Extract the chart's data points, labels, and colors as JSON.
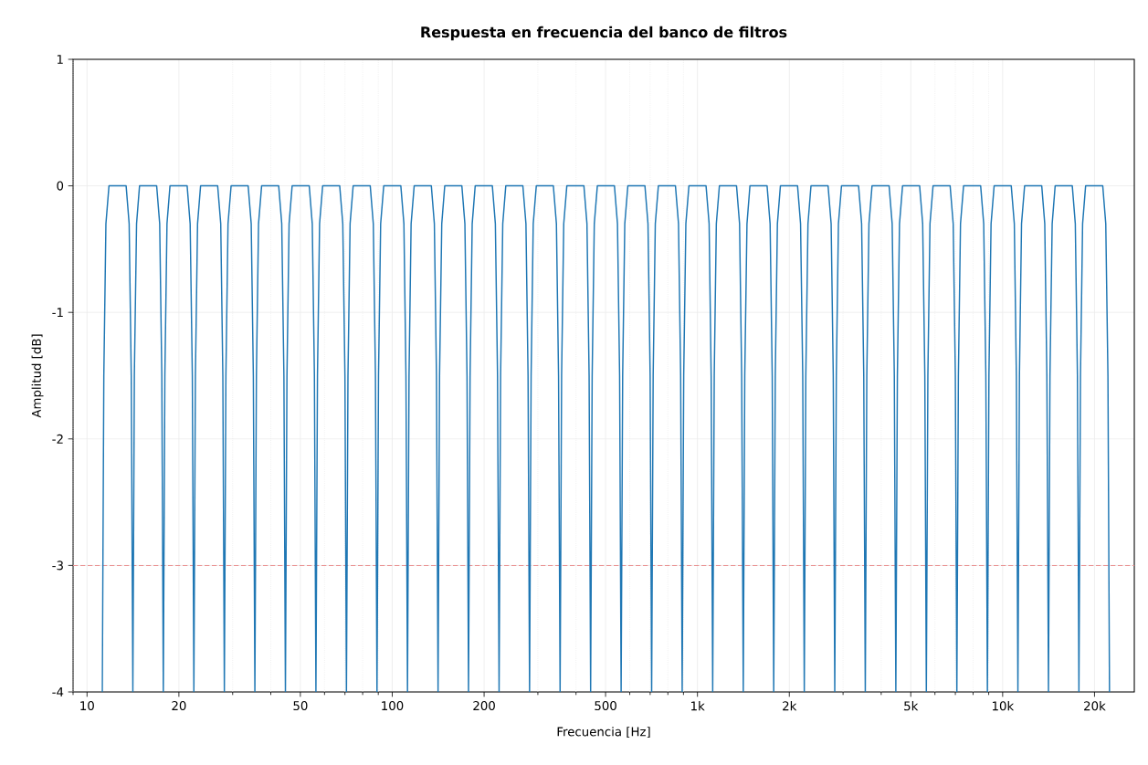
{
  "chart_data": {
    "type": "line",
    "title": "Respuesta en frecuencia del banco de filtros",
    "xlabel": "Frecuencia [Hz]",
    "ylabel": "Amplitud [dB]",
    "log": "x",
    "grid": true,
    "xlim": [
      9,
      27000
    ],
    "ylim": [
      -4,
      1
    ],
    "xticks": [
      {
        "value": 9,
        "label": null
      },
      10,
      20,
      {
        "value": 30,
        "label": null
      },
      {
        "value": 40,
        "label": null
      },
      50,
      {
        "value": 60,
        "label": null
      },
      {
        "value": 70,
        "label": null
      },
      {
        "value": 80,
        "label": null
      },
      {
        "value": 90,
        "label": null
      },
      100,
      200,
      {
        "value": 300,
        "label": null
      },
      {
        "value": 400,
        "label": null
      },
      500,
      {
        "value": 600,
        "label": null
      },
      {
        "value": 700,
        "label": null
      },
      {
        "value": 800,
        "label": null
      },
      {
        "value": 900,
        "label": null
      },
      {
        "value": 1000,
        "label": "1k"
      },
      {
        "value": 2000,
        "label": "2k"
      },
      {
        "value": 3000,
        "label": null
      },
      {
        "value": 4000,
        "label": null
      },
      {
        "value": 5000,
        "label": "5k"
      },
      {
        "value": 6000,
        "label": null
      },
      {
        "value": 7000,
        "label": null
      },
      {
        "value": 8000,
        "label": null
      },
      {
        "value": 9000,
        "label": null
      },
      {
        "value": 10000,
        "label": "10k"
      },
      {
        "value": 20000,
        "label": "20k"
      }
    ],
    "yticks": [
      -4,
      -3,
      -2,
      -1,
      0,
      1
    ],
    "ref_lines": [
      {
        "axis": "y",
        "value": -3,
        "color": "#ea9393",
        "line_style": "dashed"
      }
    ],
    "series": [
      {
        "color": "#1f77b4",
        "line_style": "solid",
        "x": [
          11.22,
          11.35,
          11.53,
          11.8,
          13.43,
          13.74,
          13.96,
          14.13,
          14.29,
          14.53,
          14.86,
          16.91,
          17.3,
          17.58,
          17.78,
          17.99,
          18.28,
          18.7,
          21.28,
          21.77,
          22.13,
          22.39,
          22.65,
          23.02,
          23.55,
          26.79,
          27.42,
          27.86,
          28.18,
          28.51,
          28.97,
          29.65,
          33.72,
          34.51,
          35.07,
          35.48,
          35.89,
          36.47,
          37.33,
          42.46,
          43.45,
          44.16,
          44.67,
          45.19,
          45.92,
          46.99,
          53.46,
          54.7,
          55.59,
          56.23,
          56.88,
          57.8,
          59.15,
          67.29,
          68.86,
          69.98,
          70.79,
          71.61,
          72.77,
          74.47,
          84.71,
          86.69,
          88.1,
          89.13,
          90.16,
          91.63,
          93.77,
          106.7,
          109.2,
          110.9,
          112.2,
          113.5,
          115.3,
          118.0,
          134.3,
          137.4,
          139.6,
          141.3,
          142.9,
          145.3,
          148.6,
          169.1,
          173.0,
          175.8,
          177.8,
          179.9,
          182.8,
          187.0,
          212.8,
          217.7,
          221.3,
          223.9,
          226.5,
          230.2,
          235.5,
          267.9,
          274.2,
          278.6,
          281.8,
          285.1,
          289.7,
          296.5,
          337.2,
          345.1,
          350.7,
          354.8,
          358.9,
          364.7,
          373.3,
          424.6,
          434.5,
          441.6,
          446.7,
          451.9,
          459.2,
          469.9,
          534.6,
          547.0,
          555.9,
          562.3,
          568.8,
          578.0,
          591.5,
          672.9,
          688.6,
          699.8,
          707.9,
          716.1,
          727.7,
          744.7,
          847.1,
          866.9,
          881.0,
          891.3,
          901.6,
          916.3,
          937.7,
          1067,
          1092,
          1109,
          1122,
          1135,
          1153,
          1180,
          1343,
          1374,
          1396,
          1413,
          1429,
          1453,
          1486,
          1691,
          1730,
          1758,
          1778,
          1799,
          1828,
          1870,
          2128,
          2177,
          2213,
          2239,
          2265,
          2302,
          2355,
          2679,
          2742,
          2786,
          2818,
          2851,
          2897,
          2965,
          3372,
          3451,
          3507,
          3548,
          3589,
          3647,
          3733,
          4246,
          4345,
          4416,
          4467,
          4519,
          4592,
          4699,
          5346,
          5470,
          5559,
          5623,
          5688,
          5780,
          5915,
          6729,
          6886,
          6998,
          7079,
          7161,
          7277,
          7447,
          8471,
          8669,
          8810,
          8913,
          9016,
          9163,
          9377,
          10670,
          10920,
          11090,
          11220,
          11350,
          11530,
          11800,
          13430,
          13740,
          13960,
          14130,
          14290,
          14530,
          14860,
          16910,
          17300,
          17580,
          17780,
          17990,
          18280,
          18700,
          21280,
          21770,
          22130,
          22390
        ],
        "values": [
          -4,
          -1.5,
          -0.3,
          0,
          0,
          -0.3,
          -1.5,
          -4,
          -1.5,
          -0.3,
          0,
          0,
          -0.3,
          -1.5,
          -4,
          -1.5,
          -0.3,
          0,
          0,
          -0.3,
          -1.5,
          -4,
          -1.5,
          -0.3,
          0,
          0,
          -0.3,
          -1.5,
          -4,
          -1.5,
          -0.3,
          0,
          0,
          -0.3,
          -1.5,
          -4,
          -1.5,
          -0.3,
          0,
          0,
          -0.3,
          -1.5,
          -4,
          -1.5,
          -0.3,
          0,
          0,
          -0.3,
          -1.5,
          -4,
          -1.5,
          -0.3,
          0,
          0,
          -0.3,
          -1.5,
          -4,
          -1.5,
          -0.3,
          0,
          0,
          -0.3,
          -1.5,
          -4,
          -1.5,
          -0.3,
          0,
          0,
          -0.3,
          -1.5,
          -4,
          -1.5,
          -0.3,
          0,
          0,
          -0.3,
          -1.5,
          -4,
          -1.5,
          -0.3,
          0,
          0,
          -0.3,
          -1.5,
          -4,
          -1.5,
          -0.3,
          0,
          0,
          -0.3,
          -1.5,
          -4,
          -1.5,
          -0.3,
          0,
          0,
          -0.3,
          -1.5,
          -4,
          -1.5,
          -0.3,
          0,
          0,
          -0.3,
          -1.5,
          -4,
          -1.5,
          -0.3,
          0,
          0,
          -0.3,
          -1.5,
          -4,
          -1.5,
          -0.3,
          0,
          0,
          -0.3,
          -1.5,
          -4,
          -1.5,
          -0.3,
          0,
          0,
          -0.3,
          -1.5,
          -4,
          -1.5,
          -0.3,
          0,
          0,
          -0.3,
          -1.5,
          -4,
          -1.5,
          -0.3,
          0,
          0,
          -0.3,
          -1.5,
          -4,
          -1.5,
          -0.3,
          0,
          0,
          -0.3,
          -1.5,
          -4,
          -1.5,
          -0.3,
          0,
          0,
          -0.3,
          -1.5,
          -4,
          -1.5,
          -0.3,
          0,
          0,
          -0.3,
          -1.5,
          -4,
          -1.5,
          -0.3,
          0,
          0,
          -0.3,
          -1.5,
          -4,
          -1.5,
          -0.3,
          0,
          0,
          -0.3,
          -1.5,
          -4,
          -1.5,
          -0.3,
          0,
          0,
          -0.3,
          -1.5,
          -4,
          -1.5,
          -0.3,
          0,
          0,
          -0.3,
          -1.5,
          -4,
          -1.5,
          -0.3,
          0,
          0,
          -0.3,
          -1.5,
          -4,
          -1.5,
          -0.3,
          0,
          0,
          -0.3,
          -1.5,
          -4,
          -1.5,
          -0.3,
          0,
          0,
          -0.3,
          -1.5,
          -4,
          -1.5,
          -0.3,
          0,
          0,
          -0.3,
          -1.5,
          -4,
          -1.5,
          -0.3,
          0,
          0,
          -0.3,
          -1.5,
          -4,
          -1.5,
          -0.3,
          0,
          0,
          -0.3,
          -1.5,
          -4
        ]
      }
    ]
  }
}
